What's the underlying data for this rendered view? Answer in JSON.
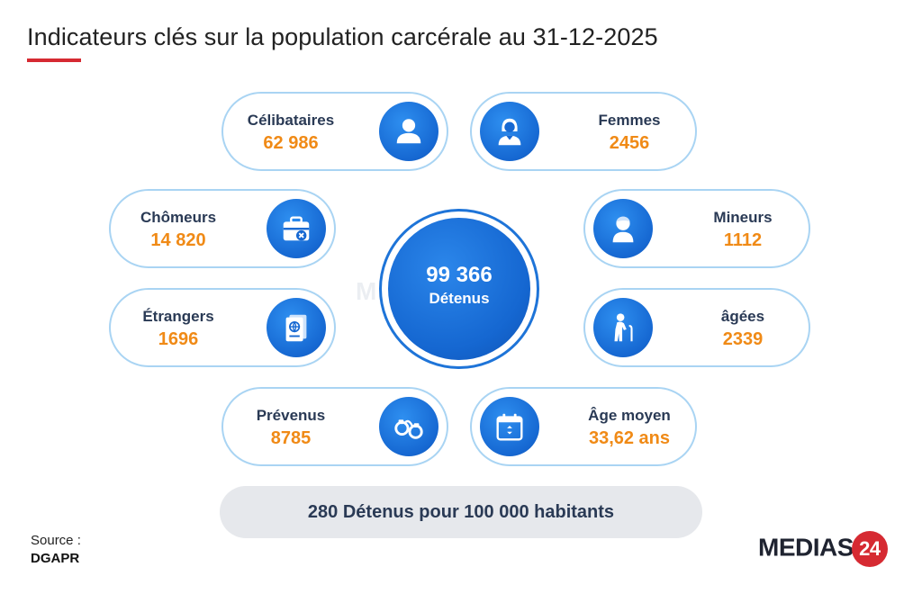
{
  "title": "Indicateurs clés sur la population carcérale au 31-12-2025",
  "colors": {
    "accent_red": "#d62a32",
    "blue": "#1668d2",
    "orange": "#f08a16",
    "border": "#a9d4f3"
  },
  "center": {
    "value": "99 366",
    "label": "Détenus"
  },
  "watermark": "MEDIAS24",
  "cards": {
    "celibataires": {
      "label": "Célibataires",
      "value": "62 986",
      "icon": "user-icon"
    },
    "femmes": {
      "label": "Femmes",
      "value": "2456",
      "icon": "woman-icon"
    },
    "chomeurs": {
      "label": "Chômeurs",
      "value": "14 820",
      "icon": "briefcase-icon"
    },
    "mineurs": {
      "label": "Mineurs",
      "value": "1112",
      "icon": "child-icon"
    },
    "etrangers": {
      "label": "Étrangers",
      "value": "1696",
      "icon": "passport-icon"
    },
    "agees": {
      "label": "âgées",
      "value": "2339",
      "icon": "elderly-icon"
    },
    "prevenus": {
      "label": "Prévenus",
      "value": "8785",
      "icon": "handcuffs-icon"
    },
    "age_moyen": {
      "label": "Âge moyen",
      "value": "33,62 ans",
      "icon": "calendar-icon"
    }
  },
  "ratio": "280 Détenus pour 100 000 habitants",
  "source": {
    "label": "Source :",
    "value": "DGAPR"
  },
  "logo": {
    "text": "MEDIAS",
    "number": "24"
  }
}
